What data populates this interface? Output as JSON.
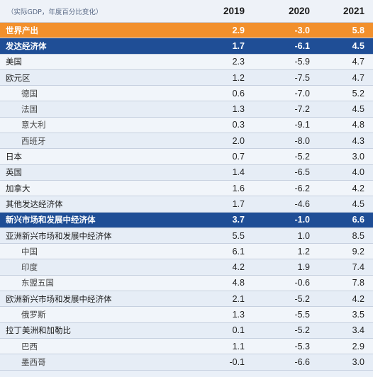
{
  "header": {
    "label": "（实际GDP，年度百分比变化）",
    "years": [
      "2019",
      "2020",
      "2021"
    ]
  },
  "rows": [
    {
      "name": "世界产出",
      "v": [
        "2.9",
        "-3.0",
        "5.8"
      ],
      "style": "orange"
    },
    {
      "name": "发达经济体",
      "v": [
        "1.7",
        "-6.1",
        "4.5"
      ],
      "style": "navy"
    },
    {
      "name": "美国",
      "v": [
        "2.3",
        "-5.9",
        "4.7"
      ],
      "style": "main"
    },
    {
      "name": "欧元区",
      "v": [
        "1.2",
        "-7.5",
        "4.7"
      ],
      "style": "main"
    },
    {
      "name": "德国",
      "v": [
        "0.6",
        "-7.0",
        "5.2"
      ],
      "style": "sub"
    },
    {
      "name": "法国",
      "v": [
        "1.3",
        "-7.2",
        "4.5"
      ],
      "style": "sub"
    },
    {
      "name": "意大利",
      "v": [
        "0.3",
        "-9.1",
        "4.8"
      ],
      "style": "sub"
    },
    {
      "name": "西班牙",
      "v": [
        "2.0",
        "-8.0",
        "4.3"
      ],
      "style": "sub"
    },
    {
      "name": "日本",
      "v": [
        "0.7",
        "-5.2",
        "3.0"
      ],
      "style": "main"
    },
    {
      "name": "英国",
      "v": [
        "1.4",
        "-6.5",
        "4.0"
      ],
      "style": "main"
    },
    {
      "name": "加拿大",
      "v": [
        "1.6",
        "-6.2",
        "4.2"
      ],
      "style": "main"
    },
    {
      "name": "其他发达经济体",
      "v": [
        "1.7",
        "-4.6",
        "4.5"
      ],
      "style": "main"
    },
    {
      "name": "新兴市场和发展中经济体",
      "v": [
        "3.7",
        "-1.0",
        "6.6"
      ],
      "style": "navy"
    },
    {
      "name": "亚洲新兴市场和发展中经济体",
      "v": [
        "5.5",
        "1.0",
        "8.5"
      ],
      "style": "main"
    },
    {
      "name": "中国",
      "v": [
        "6.1",
        "1.2",
        "9.2"
      ],
      "style": "sub"
    },
    {
      "name": "印度",
      "v": [
        "4.2",
        "1.9",
        "7.4"
      ],
      "style": "sub"
    },
    {
      "name": "东盟五国",
      "v": [
        "4.8",
        "-0.6",
        "7.8"
      ],
      "style": "sub"
    },
    {
      "name": "欧洲新兴市场和发展中经济体",
      "v": [
        "2.1",
        "-5.2",
        "4.2"
      ],
      "style": "main"
    },
    {
      "name": "俄罗斯",
      "v": [
        "1.3",
        "-5.5",
        "3.5"
      ],
      "style": "sub"
    },
    {
      "name": "拉丁美洲和加勒比",
      "v": [
        "0.1",
        "-5.2",
        "3.4"
      ],
      "style": "main"
    },
    {
      "name": "巴西",
      "v": [
        "1.1",
        "-5.3",
        "2.9"
      ],
      "style": "sub"
    },
    {
      "name": "墨西哥",
      "v": [
        "-0.1",
        "-6.6",
        "3.0"
      ],
      "style": "sub"
    }
  ]
}
